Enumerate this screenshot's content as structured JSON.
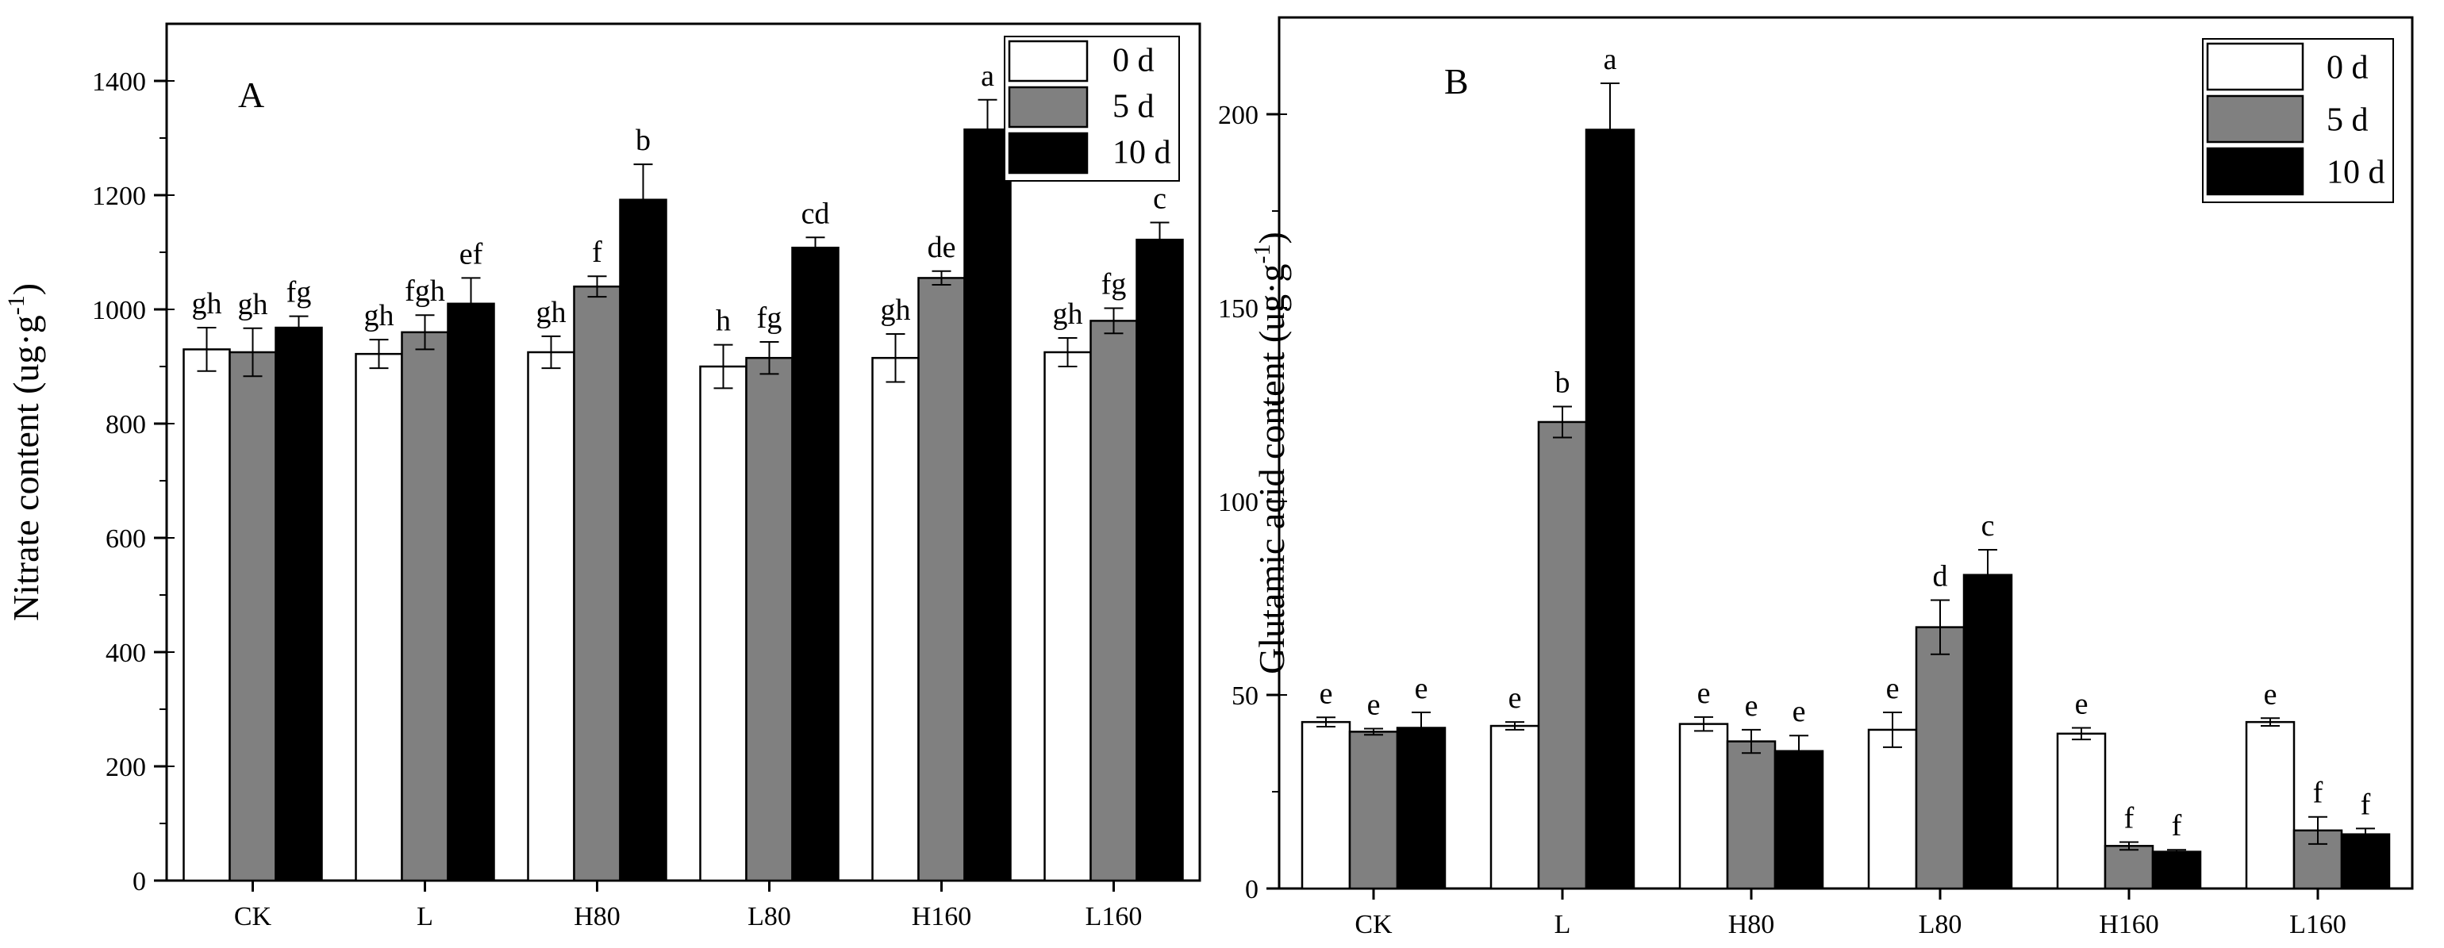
{
  "chart_data": [
    {
      "type": "bar",
      "panel_label": "A",
      "ylabel": "Nitrate content (ug·g",
      "ylabel_sup": "-1",
      "ylabel_close": ")",
      "ylim": [
        0,
        1500
      ],
      "yticks": [
        0,
        200,
        400,
        600,
        800,
        1000,
        1200,
        1400
      ],
      "categories": [
        "CK",
        "L",
        "H80",
        "L80",
        "H160",
        "L160"
      ],
      "legend_position": "top-right",
      "series": [
        {
          "name": "0 d",
          "color": "#ffffff",
          "values": [
            930,
            922,
            925,
            900,
            915,
            925
          ],
          "errors": [
            38,
            25,
            28,
            38,
            42,
            25
          ],
          "letters": [
            "gh",
            "gh",
            "gh",
            "h",
            "gh",
            "gh"
          ]
        },
        {
          "name": "5 d",
          "color": "#808080",
          "values": [
            925,
            960,
            1040,
            915,
            1055,
            980
          ],
          "errors": [
            42,
            30,
            18,
            28,
            12,
            22
          ],
          "letters": [
            "gh",
            "fgh",
            "f",
            "fg",
            "de",
            "fg"
          ]
        },
        {
          "name": "10 d",
          "color": "#000000",
          "values": [
            968,
            1010,
            1192,
            1108,
            1315,
            1122
          ],
          "errors": [
            20,
            45,
            62,
            18,
            52,
            30
          ],
          "letters": [
            "fg",
            "ef",
            "b",
            "cd",
            "a",
            "c"
          ]
        }
      ]
    },
    {
      "type": "bar",
      "panel_label": "B",
      "ylabel": "Glutamic acid content (ug·g",
      "ylabel_sup": "-1",
      "ylabel_close": ")",
      "ylim": [
        0,
        225
      ],
      "yticks": [
        0,
        50,
        100,
        150,
        200
      ],
      "categories": [
        "CK",
        "L",
        "H80",
        "L80",
        "H160",
        "L160"
      ],
      "legend_position": "top-right",
      "series": [
        {
          "name": "0 d",
          "color": "#ffffff",
          "values": [
            43,
            42,
            42.5,
            41,
            40,
            43
          ],
          "errors": [
            1.2,
            1.0,
            1.8,
            4.5,
            1.5,
            1.0
          ],
          "letters": [
            "e",
            "e",
            "e",
            "e",
            "e",
            "e"
          ]
        },
        {
          "name": "5 d",
          "color": "#808080",
          "values": [
            40.5,
            120.5,
            38,
            67.5,
            11,
            15
          ],
          "errors": [
            0.8,
            4.0,
            3.0,
            7.0,
            1.0,
            3.5
          ],
          "letters": [
            "e",
            "b",
            "e",
            "d",
            "f",
            "f"
          ]
        },
        {
          "name": "10 d",
          "color": "#000000",
          "values": [
            41.5,
            196,
            35.5,
            81,
            9.5,
            14
          ],
          "errors": [
            4.0,
            12.0,
            4.0,
            6.5,
            0.5,
            1.5
          ],
          "letters": [
            "e",
            "a",
            "e",
            "c",
            "f",
            "f"
          ]
        }
      ]
    }
  ]
}
